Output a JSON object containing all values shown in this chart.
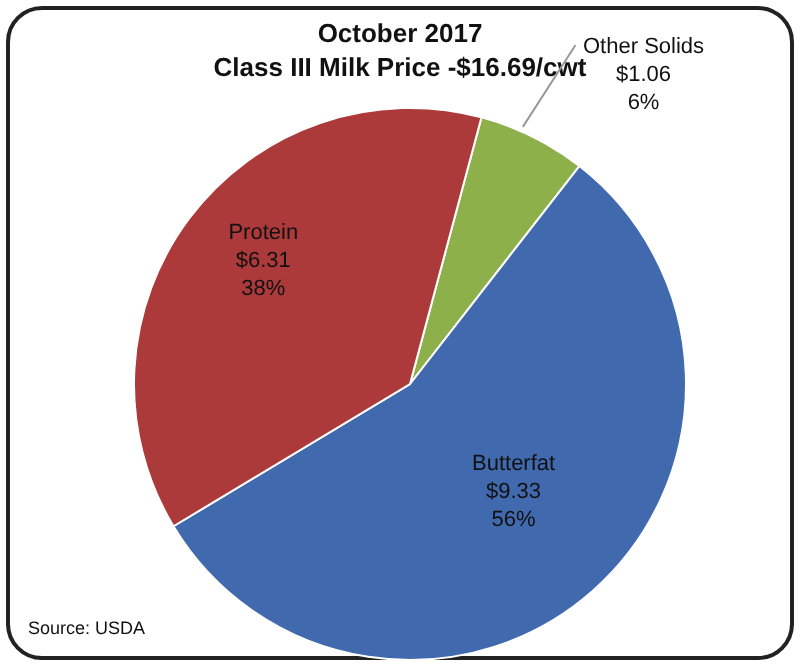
{
  "chart_data": {
    "type": "pie",
    "title": "October 2017",
    "subtitle": "Class III Milk Price -$16.69/cwt",
    "categories": [
      "Other Solids",
      "Butterfat",
      "Protein"
    ],
    "values": [
      1.06,
      9.33,
      6.31
    ],
    "value_labels": [
      "$1.06\n6%",
      "$9.33\n56%",
      "$6.31\n38%"
    ],
    "colors": [
      "#8db04b",
      "#4169ae",
      "#ad3a3a"
    ],
    "legend": false,
    "annotations": [
      "Source: USDA"
    ]
  }
}
